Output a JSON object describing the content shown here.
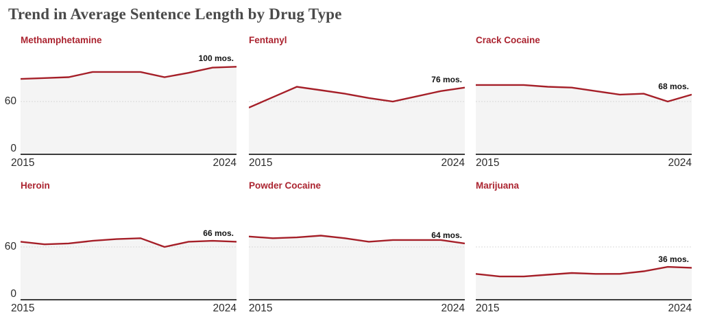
{
  "page_title": "Trend in Average Sentence Length by Drug Type",
  "colors": {
    "line": "#a51f28",
    "panel_title": "#ab2430",
    "area_fill": "#f4f4f4",
    "gridline": "#d9d9d9",
    "axis_line": "#3c3c3c",
    "tick_label": "#2b2b2b",
    "value_label": "#121212",
    "page_title_color": "#4a4a4a",
    "background": "#ffffff"
  },
  "axis": {
    "x_start_label": "2015",
    "x_end_label": "2024",
    "y_tick_labels": {
      "zero": "0",
      "sixty": "60"
    }
  },
  "chart_data": [
    {
      "type": "line",
      "title": "Methamphetamine",
      "x": [
        2015,
        2016,
        2017,
        2018,
        2019,
        2020,
        2021,
        2022,
        2023,
        2024
      ],
      "values": [
        86,
        87,
        88,
        94,
        94,
        94,
        88,
        93,
        99,
        100
      ],
      "end_label": "100 mos.",
      "ylim": [
        0,
        117
      ],
      "y_ticks": [
        0,
        60
      ],
      "grid": true,
      "show_y_tick_labels": true
    },
    {
      "type": "line",
      "title": "Fentanyl",
      "x": [
        2015,
        2016,
        2017,
        2018,
        2019,
        2020,
        2021,
        2022,
        2023,
        2024
      ],
      "values": [
        53,
        65,
        77,
        73,
        69,
        64,
        60,
        66,
        72,
        76
      ],
      "end_label": "76 mos.",
      "ylim": [
        0,
        117
      ],
      "y_ticks": [
        0,
        60
      ],
      "grid": true,
      "show_y_tick_labels": false
    },
    {
      "type": "line",
      "title": "Crack Cocaine",
      "x": [
        2015,
        2016,
        2017,
        2018,
        2019,
        2020,
        2021,
        2022,
        2023,
        2024
      ],
      "values": [
        79,
        79,
        79,
        77,
        76,
        72,
        68,
        69,
        60,
        68
      ],
      "end_label": "68 mos.",
      "ylim": [
        0,
        117
      ],
      "y_ticks": [
        0,
        60
      ],
      "grid": true,
      "show_y_tick_labels": false
    },
    {
      "type": "line",
      "title": "Heroin",
      "x": [
        2015,
        2016,
        2017,
        2018,
        2019,
        2020,
        2021,
        2022,
        2023,
        2024
      ],
      "values": [
        66,
        63,
        64,
        67,
        69,
        70,
        60,
        66,
        67,
        66
      ],
      "end_label": "66 mos.",
      "ylim": [
        0,
        117
      ],
      "y_ticks": [
        0,
        60
      ],
      "grid": true,
      "show_y_tick_labels": true
    },
    {
      "type": "line",
      "title": "Powder Cocaine",
      "x": [
        2015,
        2016,
        2017,
        2018,
        2019,
        2020,
        2021,
        2022,
        2023,
        2024
      ],
      "values": [
        72,
        70,
        71,
        73,
        70,
        66,
        68,
        68,
        68,
        64
      ],
      "end_label": "64 mos.",
      "ylim": [
        0,
        117
      ],
      "y_ticks": [
        0,
        60
      ],
      "grid": true,
      "show_y_tick_labels": false
    },
    {
      "type": "line",
      "title": "Marijuana",
      "x": [
        2015,
        2016,
        2017,
        2018,
        2019,
        2020,
        2021,
        2022,
        2023,
        2024
      ],
      "values": [
        29,
        26,
        26,
        28,
        30,
        29,
        29,
        32,
        37,
        36
      ],
      "end_label": "36 mos.",
      "ylim": [
        0,
        117
      ],
      "y_ticks": [
        0,
        60
      ],
      "grid": true,
      "show_y_tick_labels": false
    }
  ]
}
